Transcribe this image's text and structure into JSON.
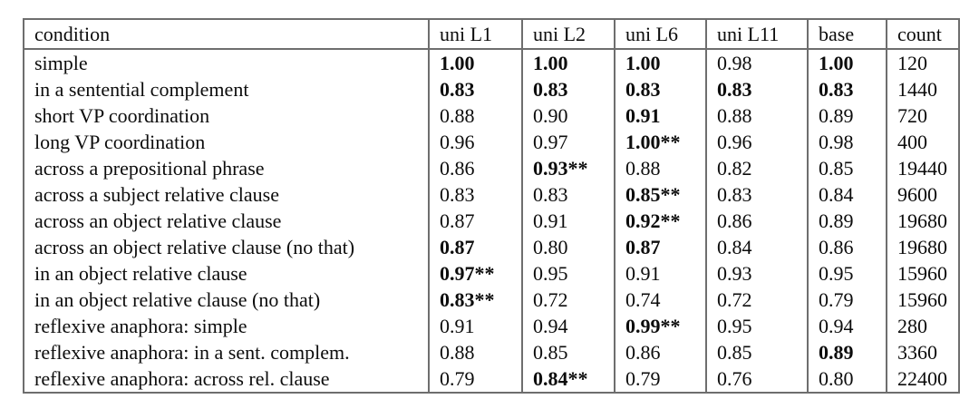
{
  "table": {
    "columns": [
      "condition",
      "uni L1",
      "uni L2",
      "uni L6",
      "uni L11",
      "base",
      "count"
    ],
    "rows": [
      {
        "label": "simple",
        "values": [
          "1.00",
          "1.00",
          "1.00",
          "0.98",
          "1.00",
          "120"
        ],
        "bold": [
          true,
          true,
          true,
          false,
          true,
          false
        ]
      },
      {
        "label": "in a sentential complement",
        "values": [
          "0.83",
          "0.83",
          "0.83",
          "0.83",
          "0.83",
          "1440"
        ],
        "bold": [
          true,
          true,
          true,
          true,
          true,
          false
        ]
      },
      {
        "label": "short VP coordination",
        "values": [
          "0.88",
          "0.90",
          "0.91",
          "0.88",
          "0.89",
          "720"
        ],
        "bold": [
          false,
          false,
          true,
          false,
          false,
          false
        ]
      },
      {
        "label": "long VP coordination",
        "values": [
          "0.96",
          "0.97",
          "1.00**",
          "0.96",
          "0.98",
          "400"
        ],
        "bold": [
          false,
          false,
          true,
          false,
          false,
          false
        ]
      },
      {
        "label": "across a prepositional phrase",
        "values": [
          "0.86",
          "0.93**",
          "0.88",
          "0.82",
          "0.85",
          "19440"
        ],
        "bold": [
          false,
          true,
          false,
          false,
          false,
          false
        ]
      },
      {
        "label": "across a subject relative clause",
        "values": [
          "0.83",
          "0.83",
          "0.85**",
          "0.83",
          "0.84",
          "9600"
        ],
        "bold": [
          false,
          false,
          true,
          false,
          false,
          false
        ]
      },
      {
        "label": "across an object relative clause",
        "values": [
          "0.87",
          "0.91",
          "0.92**",
          "0.86",
          "0.89",
          "19680"
        ],
        "bold": [
          false,
          false,
          true,
          false,
          false,
          false
        ]
      },
      {
        "label": "across an object relative clause (no that)",
        "values": [
          "0.87",
          "0.80",
          "0.87",
          "0.84",
          "0.86",
          "19680"
        ],
        "bold": [
          true,
          false,
          true,
          false,
          false,
          false
        ]
      },
      {
        "label": "in an object relative clause",
        "values": [
          "0.97**",
          "0.95",
          "0.91",
          "0.93",
          "0.95",
          "15960"
        ],
        "bold": [
          true,
          false,
          false,
          false,
          false,
          false
        ]
      },
      {
        "label": "in an object relative clause (no that)",
        "values": [
          "0.83**",
          "0.72",
          "0.74",
          "0.72",
          "0.79",
          "15960"
        ],
        "bold": [
          true,
          false,
          false,
          false,
          false,
          false
        ]
      },
      {
        "label": "reflexive anaphora: simple",
        "values": [
          "0.91",
          "0.94",
          "0.99**",
          "0.95",
          "0.94",
          "280"
        ],
        "bold": [
          false,
          false,
          true,
          false,
          false,
          false
        ]
      },
      {
        "label": "reflexive anaphora: in a sent. complem.",
        "values": [
          "0.88",
          "0.85",
          "0.86",
          "0.85",
          "0.89",
          "3360"
        ],
        "bold": [
          false,
          false,
          false,
          false,
          true,
          false
        ]
      },
      {
        "label": "reflexive anaphora: across rel. clause",
        "values": [
          "0.79",
          "0.84**",
          "0.79",
          "0.76",
          "0.80",
          "22400"
        ],
        "bold": [
          false,
          true,
          false,
          false,
          false,
          false
        ]
      }
    ]
  }
}
